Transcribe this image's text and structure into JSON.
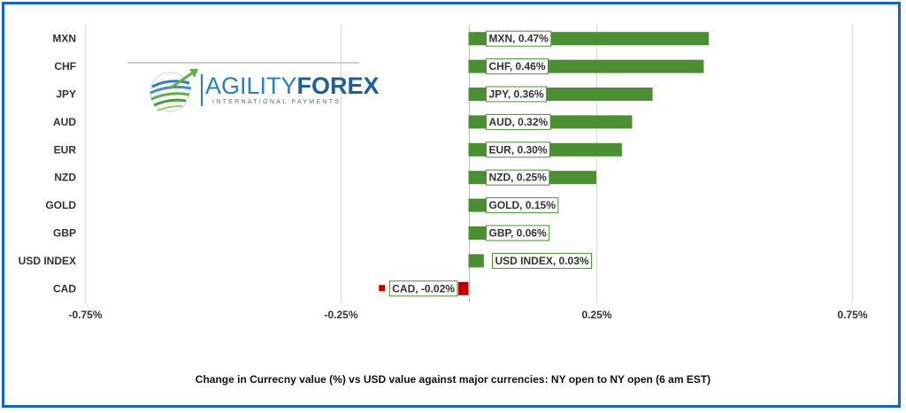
{
  "chart_data": {
    "type": "bar",
    "orientation": "horizontal",
    "categories": [
      "MXN",
      "CHF",
      "JPY",
      "AUD",
      "EUR",
      "NZD",
      "GOLD",
      "GBP",
      "USD INDEX",
      "CAD"
    ],
    "values": [
      0.47,
      0.46,
      0.36,
      0.32,
      0.3,
      0.25,
      0.15,
      0.06,
      0.03,
      -0.02
    ],
    "data_labels": [
      "MXN, 0.47%",
      "CHF, 0.46%",
      "JPY, 0.36%",
      "AUD, 0.32%",
      "EUR, 0.30%",
      "NZD, 0.25%",
      "GOLD, 0.15%",
      "GBP, 0.06%",
      "USD INDEX, 0.03%",
      "CAD, -0.02%"
    ],
    "xlim": [
      -0.75,
      0.75
    ],
    "xticks": [
      -0.75,
      -0.25,
      0.25,
      0.75
    ],
    "xtick_labels": [
      "-0.75%",
      "-0.25%",
      "0.25%",
      "0.75%"
    ],
    "grid": true,
    "positive_color": "#4a8f32",
    "negative_color": "#c00000",
    "title": "Change in Currecny value (%) vs USD value  against major currencies:  NY open to NY open  (6 am EST)"
  },
  "logo": {
    "brand_light": "AGILITY",
    "brand_bold": "FOREX",
    "tagline": "INTERNATIONAL PAYMENTS"
  },
  "colors": {
    "frame": "#1565c0"
  }
}
